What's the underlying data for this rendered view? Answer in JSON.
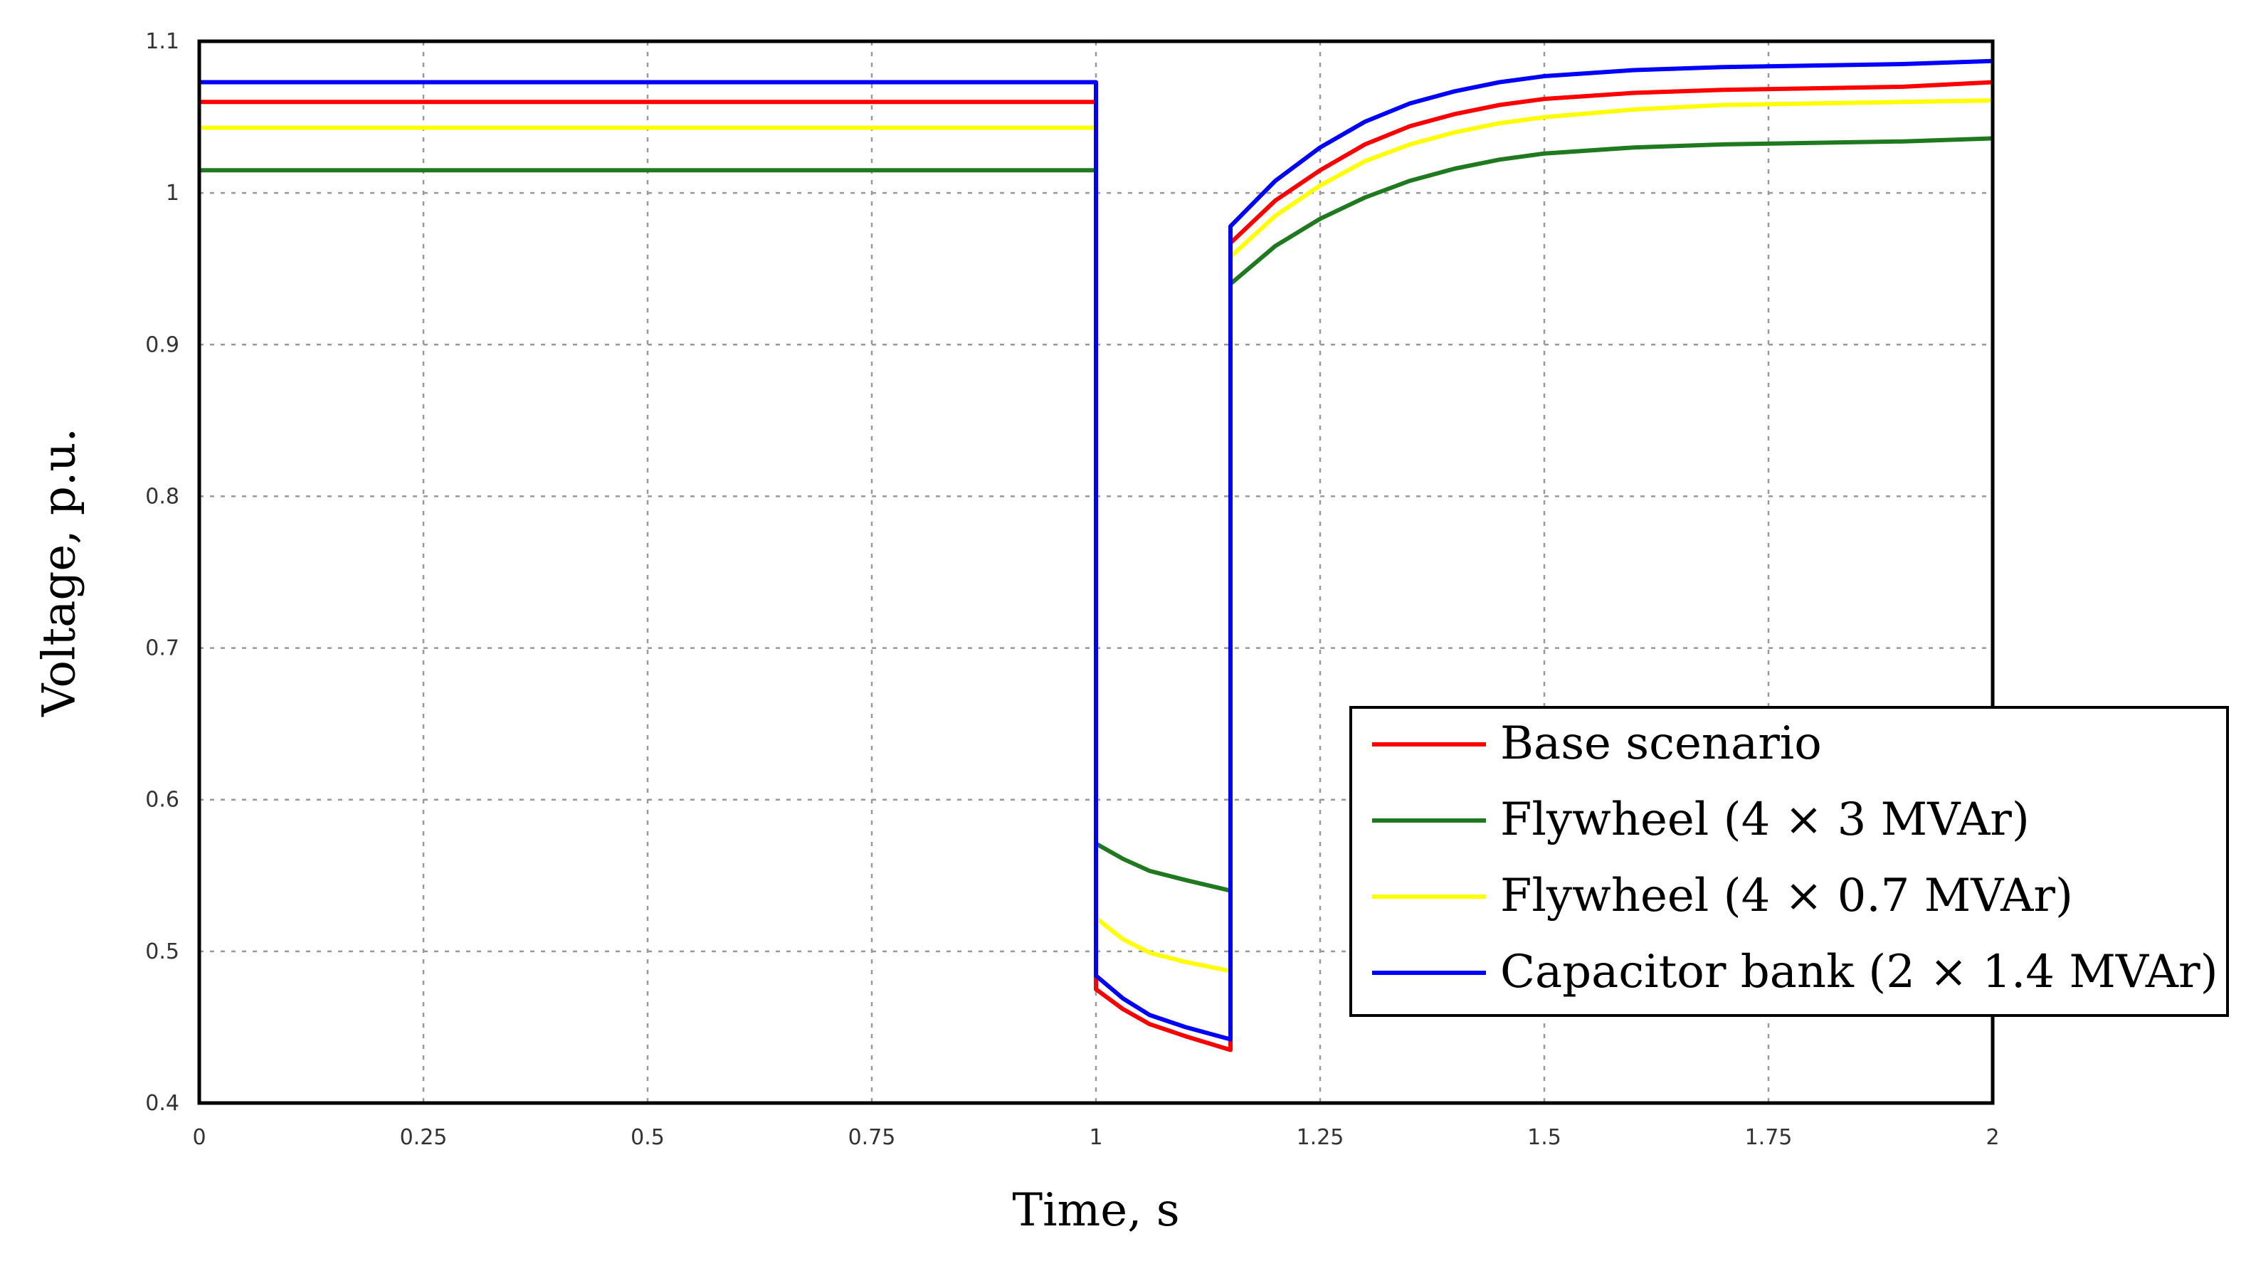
{
  "chart_data": {
    "type": "line",
    "title": "",
    "xlabel": "Time, s",
    "ylabel": "Voltage, p.u.",
    "xlim": [
      0,
      2
    ],
    "ylim": [
      0.4,
      1.1
    ],
    "x_ticks": [
      "0",
      "0.25",
      "0.5",
      "0.75",
      "1",
      "1.25",
      "1.5",
      "1.75",
      "2"
    ],
    "y_ticks": [
      "0.4",
      "0.5",
      "0.6",
      "0.7",
      "0.8",
      "0.9",
      "1",
      "1.1"
    ],
    "grid": true,
    "legend_position": "right",
    "series": [
      {
        "name": "Base scenario",
        "color": "#ff0000",
        "points": [
          [
            0,
            1.06
          ],
          [
            1,
            1.06
          ],
          [
            1,
            0.475
          ],
          [
            1.03,
            0.462
          ],
          [
            1.06,
            0.452
          ],
          [
            1.1,
            0.444
          ],
          [
            1.15,
            0.435
          ],
          [
            1.15,
            0.967
          ],
          [
            1.2,
            0.995
          ],
          [
            1.25,
            1.015
          ],
          [
            1.3,
            1.032
          ],
          [
            1.35,
            1.044
          ],
          [
            1.4,
            1.052
          ],
          [
            1.45,
            1.058
          ],
          [
            1.5,
            1.062
          ],
          [
            1.6,
            1.066
          ],
          [
            1.7,
            1.068
          ],
          [
            1.8,
            1.069
          ],
          [
            1.9,
            1.07
          ],
          [
            2,
            1.073
          ]
        ]
      },
      {
        "name": "Flywheel (4 × 3 MVAr)",
        "color": "#1f7a1f",
        "points": [
          [
            0,
            1.015
          ],
          [
            1,
            1.015
          ],
          [
            1,
            0.571
          ],
          [
            1.03,
            0.561
          ],
          [
            1.06,
            0.553
          ],
          [
            1.1,
            0.547
          ],
          [
            1.15,
            0.54
          ],
          [
            1.15,
            0.94
          ],
          [
            1.2,
            0.965
          ],
          [
            1.25,
            0.983
          ],
          [
            1.3,
            0.997
          ],
          [
            1.35,
            1.008
          ],
          [
            1.4,
            1.016
          ],
          [
            1.45,
            1.022
          ],
          [
            1.5,
            1.026
          ],
          [
            1.6,
            1.03
          ],
          [
            1.7,
            1.032
          ],
          [
            1.8,
            1.033
          ],
          [
            1.9,
            1.034
          ],
          [
            2,
            1.036
          ]
        ]
      },
      {
        "name": "Flywheel (4 × 0.7 MVAr)",
        "color": "#ffff00",
        "points": [
          [
            0,
            1.043
          ],
          [
            1,
            1.043
          ],
          [
            1,
            0.522
          ],
          [
            1.03,
            0.508
          ],
          [
            1.06,
            0.499
          ],
          [
            1.1,
            0.493
          ],
          [
            1.15,
            0.487
          ],
          [
            1.15,
            0.958
          ],
          [
            1.2,
            0.985
          ],
          [
            1.25,
            1.005
          ],
          [
            1.3,
            1.021
          ],
          [
            1.35,
            1.032
          ],
          [
            1.4,
            1.04
          ],
          [
            1.45,
            1.046
          ],
          [
            1.5,
            1.05
          ],
          [
            1.6,
            1.055
          ],
          [
            1.7,
            1.058
          ],
          [
            1.8,
            1.059
          ],
          [
            1.9,
            1.06
          ],
          [
            2,
            1.061
          ]
        ]
      },
      {
        "name": "Capacitor bank (2 × 1.4 MVAr)",
        "color": "#0000ff",
        "points": [
          [
            0,
            1.073
          ],
          [
            1,
            1.073
          ],
          [
            1,
            0.484
          ],
          [
            1.03,
            0.469
          ],
          [
            1.06,
            0.458
          ],
          [
            1.1,
            0.45
          ],
          [
            1.15,
            0.442
          ],
          [
            1.15,
            0.978
          ],
          [
            1.2,
            1.008
          ],
          [
            1.25,
            1.03
          ],
          [
            1.3,
            1.047
          ],
          [
            1.35,
            1.059
          ],
          [
            1.4,
            1.067
          ],
          [
            1.45,
            1.073
          ],
          [
            1.5,
            1.077
          ],
          [
            1.6,
            1.081
          ],
          [
            1.7,
            1.083
          ],
          [
            1.8,
            1.084
          ],
          [
            1.9,
            1.085
          ],
          [
            2,
            1.087
          ]
        ]
      }
    ]
  }
}
